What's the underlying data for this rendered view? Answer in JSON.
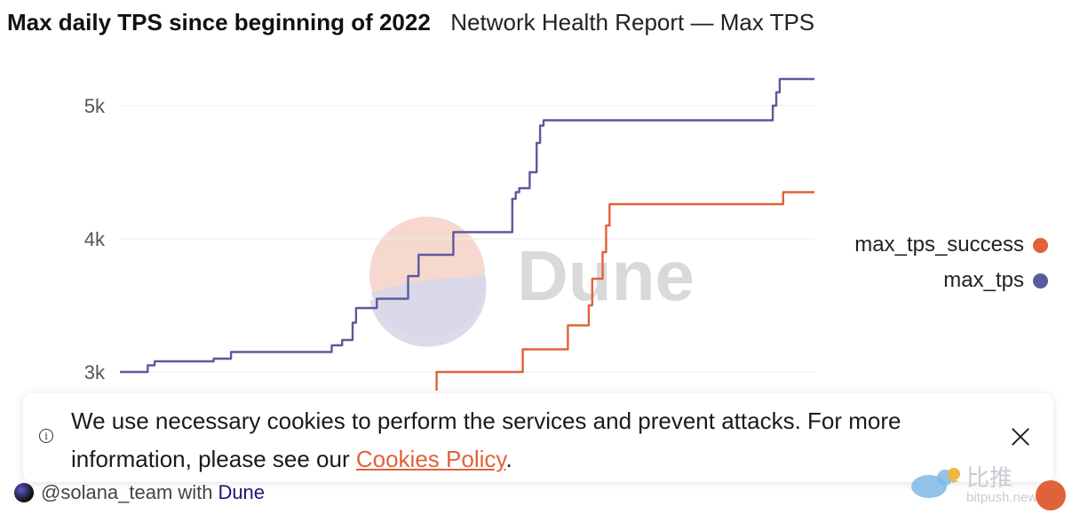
{
  "header": {
    "title": "Max daily TPS since beginning of 2022",
    "subtitle": "Network Health Report — Max TPS"
  },
  "chart_data": {
    "type": "line",
    "y_ticks": [
      "5k",
      "4k",
      "3k"
    ],
    "ylim": [
      2850,
      5250
    ],
    "grid": true,
    "legend_position": "right",
    "watermark": "Dune",
    "series": [
      {
        "name": "max_tps_success",
        "color": "#e0623a",
        "points": [
          [
            0.456,
            2850
          ],
          [
            0.456,
            3000
          ],
          [
            0.575,
            3000
          ],
          [
            0.575,
            3000
          ],
          [
            0.58,
            3170
          ],
          [
            0.64,
            3170
          ],
          [
            0.645,
            3350
          ],
          [
            0.67,
            3350
          ],
          [
            0.675,
            3500
          ],
          [
            0.68,
            3700
          ],
          [
            0.69,
            3700
          ],
          [
            0.695,
            3900
          ],
          [
            0.7,
            4100
          ],
          [
            0.705,
            4260
          ],
          [
            0.95,
            4260
          ],
          [
            0.955,
            4350
          ],
          [
            1.0,
            4350
          ]
        ]
      },
      {
        "name": "max_tps",
        "color": "#5a5a9c",
        "points": [
          [
            0.0,
            3000
          ],
          [
            0.035,
            3000
          ],
          [
            0.04,
            3050
          ],
          [
            0.045,
            3050
          ],
          [
            0.05,
            3080
          ],
          [
            0.13,
            3080
          ],
          [
            0.135,
            3100
          ],
          [
            0.155,
            3100
          ],
          [
            0.16,
            3150
          ],
          [
            0.3,
            3150
          ],
          [
            0.305,
            3200
          ],
          [
            0.32,
            3240
          ],
          [
            0.33,
            3240
          ],
          [
            0.335,
            3370
          ],
          [
            0.34,
            3480
          ],
          [
            0.36,
            3480
          ],
          [
            0.37,
            3550
          ],
          [
            0.41,
            3550
          ],
          [
            0.415,
            3720
          ],
          [
            0.425,
            3720
          ],
          [
            0.43,
            3880
          ],
          [
            0.46,
            3880
          ],
          [
            0.48,
            4050
          ],
          [
            0.56,
            4050
          ],
          [
            0.565,
            4300
          ],
          [
            0.57,
            4350
          ],
          [
            0.575,
            4380
          ],
          [
            0.585,
            4380
          ],
          [
            0.59,
            4500
          ],
          [
            0.6,
            4720
          ],
          [
            0.605,
            4850
          ],
          [
            0.61,
            4890
          ],
          [
            0.935,
            4890
          ],
          [
            0.94,
            5000
          ],
          [
            0.945,
            5100
          ],
          [
            0.95,
            5200
          ],
          [
            1.0,
            5200
          ]
        ]
      }
    ]
  },
  "legend": {
    "items": [
      {
        "label": "max_tps_success",
        "color": "#e0623a"
      },
      {
        "label": "max_tps",
        "color": "#5a5a9c"
      }
    ]
  },
  "cookie_banner": {
    "text_before": "We use necessary cookies to perform the services and prevent attacks. For more information, please see our ",
    "link_label": "Cookies Policy",
    "text_after": "."
  },
  "footer": {
    "handle": "@solana_team",
    "with_label": "with",
    "brand": "Dune"
  },
  "watermark_site": {
    "name": "比推",
    "url": "bitpush.news"
  }
}
